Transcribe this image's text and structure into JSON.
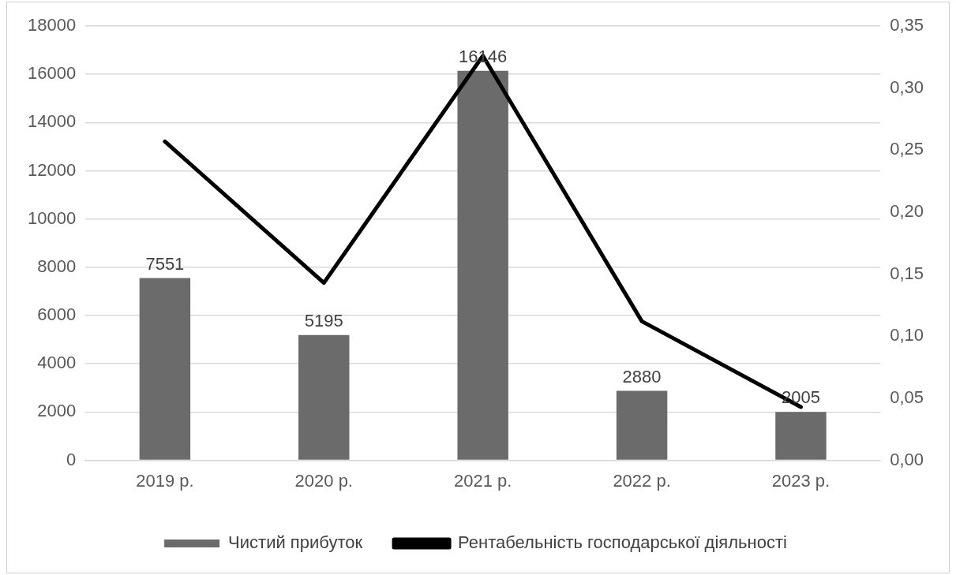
{
  "chart_data": {
    "type": "bar",
    "categories": [
      "2019 р.",
      "2020 р.",
      "2021 р.",
      "2022 р.",
      "2023 р."
    ],
    "series": [
      {
        "name": "Чистий прибуток",
        "color": "#6b6b6b",
        "values": [
          7551,
          5195,
          16146,
          2880,
          2005
        ],
        "value_labels": [
          "7551",
          "5195",
          "16146",
          "2880",
          "2005"
        ]
      },
      {
        "name": "Рентабельність господарської діяльності",
        "type": "line",
        "axis": "y2",
        "color": "#000000",
        "values": [
          0.257,
          0.143,
          0.326,
          0.112,
          0.043
        ]
      }
    ],
    "ylim": [
      0,
      18000
    ],
    "yticks": [
      0,
      2000,
      4000,
      6000,
      8000,
      10000,
      12000,
      14000,
      16000,
      18000
    ],
    "y2lim": [
      0,
      0.35
    ],
    "y2ticks": [
      {
        "value": 0,
        "label": "0,00"
      },
      {
        "value": 0.05,
        "label": "0,05"
      },
      {
        "value": 0.1,
        "label": "0,10"
      },
      {
        "value": 0.15,
        "label": "0,15"
      },
      {
        "value": 0.2,
        "label": "0,20"
      },
      {
        "value": 0.25,
        "label": "0,25"
      },
      {
        "value": 0.3,
        "label": "0,30"
      },
      {
        "value": 0.35,
        "label": "0,35"
      }
    ],
    "grid": "y",
    "legend": "bottom",
    "marker": "none"
  }
}
